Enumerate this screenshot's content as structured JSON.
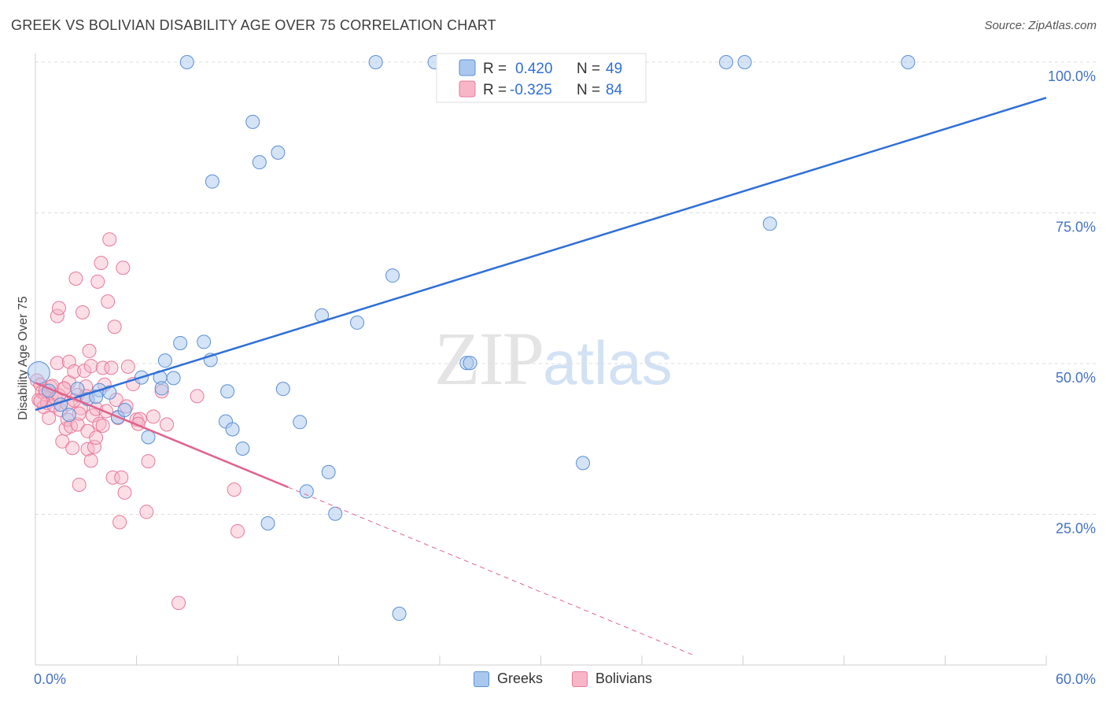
{
  "title": "GREEK VS BOLIVIAN DISABILITY AGE OVER 75 CORRELATION CHART",
  "source": "Source: ZipAtlas.com",
  "watermark": {
    "zip": "ZIP",
    "atlas": "atlas"
  },
  "legend": {
    "greeks": {
      "r_label": "R =",
      "r_value": "0.420",
      "n_label": "N =",
      "n_value": "49"
    },
    "bolivians": {
      "r_label": "R =",
      "r_value": "-0.325",
      "n_label": "N =",
      "n_value": "84"
    }
  },
  "bottom_legend": {
    "greeks": "Greeks",
    "bolivians": "Bolivians"
  },
  "colors": {
    "greek_fill": "#aac8ee",
    "greek_stroke": "#5b8fd6",
    "greek_line": "#2f6fd8",
    "bolivian_fill": "#f7b6c8",
    "bolivian_stroke": "#e7799b",
    "bolivian_line": "#e0628e",
    "axis_text": "#4472c4",
    "grid": "#dddddd"
  },
  "chart_data": {
    "type": "scatter",
    "title": "GREEK VS BOLIVIAN DISABILITY AGE OVER 75 CORRELATION CHART",
    "xlabel": "",
    "ylabel": "Disability Age Over 75",
    "xlim": [
      0,
      60
    ],
    "ylim": [
      0,
      103
    ],
    "x_tick_labels": [
      "0.0%",
      "60.0%"
    ],
    "y_ticks": [
      25,
      50,
      75,
      100
    ],
    "y_tick_labels": [
      "25.0%",
      "50.0%",
      "75.0%",
      "100.0%"
    ],
    "grid": true,
    "legend_position": "top-center",
    "series": [
      {
        "name": "Greeks",
        "r": 0.42,
        "n": 49,
        "trend": {
          "x": [
            0,
            60
          ],
          "y": [
            42.3,
            94.1
          ],
          "dashed_extension": false
        },
        "points": [
          [
            0.2,
            48.5
          ],
          [
            0.8,
            45.5
          ],
          [
            1.5,
            43.2
          ],
          [
            2.0,
            41.5
          ],
          [
            3.1,
            44.1
          ],
          [
            3.8,
            45.6
          ],
          [
            4.4,
            45.2
          ],
          [
            4.9,
            41.1
          ],
          [
            5.3,
            42.3
          ],
          [
            6.3,
            47.7
          ],
          [
            6.7,
            37.8
          ],
          [
            7.4,
            47.7
          ],
          [
            7.5,
            45.9
          ],
          [
            7.7,
            50.5
          ],
          [
            8.2,
            47.6
          ],
          [
            8.6,
            53.4
          ],
          [
            9.0,
            100
          ],
          [
            10.0,
            53.6
          ],
          [
            10.4,
            50.6
          ],
          [
            10.5,
            80.2
          ],
          [
            11.4,
            45.4
          ],
          [
            11.3,
            40.4
          ],
          [
            11.7,
            39.1
          ],
          [
            12.3,
            35.9
          ],
          [
            12.9,
            90.1
          ],
          [
            13.3,
            83.4
          ],
          [
            13.8,
            23.5
          ],
          [
            14.4,
            85.0
          ],
          [
            14.7,
            45.8
          ],
          [
            15.7,
            40.3
          ],
          [
            16.1,
            28.8
          ],
          [
            17.0,
            58.0
          ],
          [
            17.4,
            32.0
          ],
          [
            17.8,
            25.1
          ],
          [
            19.1,
            56.8
          ],
          [
            20.2,
            100
          ],
          [
            21.2,
            64.6
          ],
          [
            21.6,
            8.5
          ],
          [
            23.7,
            100
          ],
          [
            24.4,
            100
          ],
          [
            25.6,
            50.1
          ],
          [
            25.8,
            50.1
          ],
          [
            32.5,
            33.5
          ],
          [
            41.0,
            100
          ],
          [
            42.1,
            100
          ],
          [
            43.6,
            73.2
          ],
          [
            51.8,
            100
          ],
          [
            2.5,
            45.8
          ],
          [
            3.6,
            44.5
          ]
        ]
      },
      {
        "name": "Bolivians",
        "r": -0.325,
        "n": 84,
        "trend": {
          "x": [
            0,
            15
          ],
          "y": [
            46.8,
            29.5
          ],
          "dashed_to": [
            39,
            1.7
          ]
        },
        "points": [
          [
            0.1,
            47.2
          ],
          [
            0.2,
            44.0
          ],
          [
            0.3,
            46.5
          ],
          [
            0.4,
            45.3
          ],
          [
            0.5,
            42.8
          ],
          [
            0.6,
            44.9
          ],
          [
            0.7,
            43.5
          ],
          [
            0.8,
            41.0
          ],
          [
            0.9,
            46.1
          ],
          [
            1.0,
            45.0
          ],
          [
            1.1,
            43.1
          ],
          [
            1.2,
            44.3
          ],
          [
            1.3,
            50.1
          ],
          [
            1.3,
            57.9
          ],
          [
            1.4,
            59.2
          ],
          [
            1.5,
            42.3
          ],
          [
            1.6,
            37.1
          ],
          [
            1.7,
            45.8
          ],
          [
            1.8,
            39.2
          ],
          [
            1.9,
            40.7
          ],
          [
            2.0,
            46.9
          ],
          [
            2.0,
            50.3
          ],
          [
            2.1,
            39.6
          ],
          [
            2.2,
            36.0
          ],
          [
            2.3,
            48.7
          ],
          [
            2.4,
            64.1
          ],
          [
            2.5,
            44.8
          ],
          [
            2.5,
            39.9
          ],
          [
            2.6,
            29.9
          ],
          [
            2.7,
            42.6
          ],
          [
            2.8,
            58.5
          ],
          [
            2.9,
            48.8
          ],
          [
            3.0,
            46.2
          ],
          [
            3.1,
            38.8
          ],
          [
            3.1,
            35.8
          ],
          [
            3.2,
            52.1
          ],
          [
            3.3,
            49.6
          ],
          [
            3.3,
            33.9
          ],
          [
            3.4,
            41.4
          ],
          [
            3.5,
            36.2
          ],
          [
            3.6,
            42.5
          ],
          [
            3.7,
            63.6
          ],
          [
            3.8,
            40.0
          ],
          [
            3.9,
            66.7
          ],
          [
            4.0,
            49.3
          ],
          [
            4.0,
            39.7
          ],
          [
            4.1,
            46.5
          ],
          [
            4.2,
            42.1
          ],
          [
            4.3,
            60.3
          ],
          [
            4.4,
            70.6
          ],
          [
            4.5,
            49.3
          ],
          [
            4.6,
            31.1
          ],
          [
            4.7,
            56.1
          ],
          [
            4.9,
            41.0
          ],
          [
            5.0,
            23.7
          ],
          [
            5.1,
            31.1
          ],
          [
            5.2,
            65.9
          ],
          [
            5.3,
            28.6
          ],
          [
            5.5,
            49.5
          ],
          [
            5.8,
            46.6
          ],
          [
            6.0,
            40.7
          ],
          [
            6.2,
            40.8
          ],
          [
            6.1,
            40.0
          ],
          [
            6.6,
            25.4
          ],
          [
            6.7,
            33.8
          ],
          [
            7.0,
            41.2
          ],
          [
            7.5,
            45.4
          ],
          [
            7.8,
            39.9
          ],
          [
            8.5,
            10.3
          ],
          [
            9.6,
            44.6
          ],
          [
            11.8,
            29.1
          ],
          [
            12.0,
            22.2
          ],
          [
            1.4,
            44.7
          ],
          [
            1.9,
            43.3
          ],
          [
            2.6,
            41.7
          ],
          [
            3.0,
            44.6
          ],
          [
            4.8,
            44.0
          ],
          [
            0.6,
            45.5
          ],
          [
            1.0,
            46.3
          ],
          [
            1.7,
            45.9
          ],
          [
            2.3,
            43.9
          ],
          [
            3.6,
            37.7
          ],
          [
            0.3,
            43.8
          ],
          [
            5.4,
            42.9
          ]
        ]
      }
    ]
  }
}
